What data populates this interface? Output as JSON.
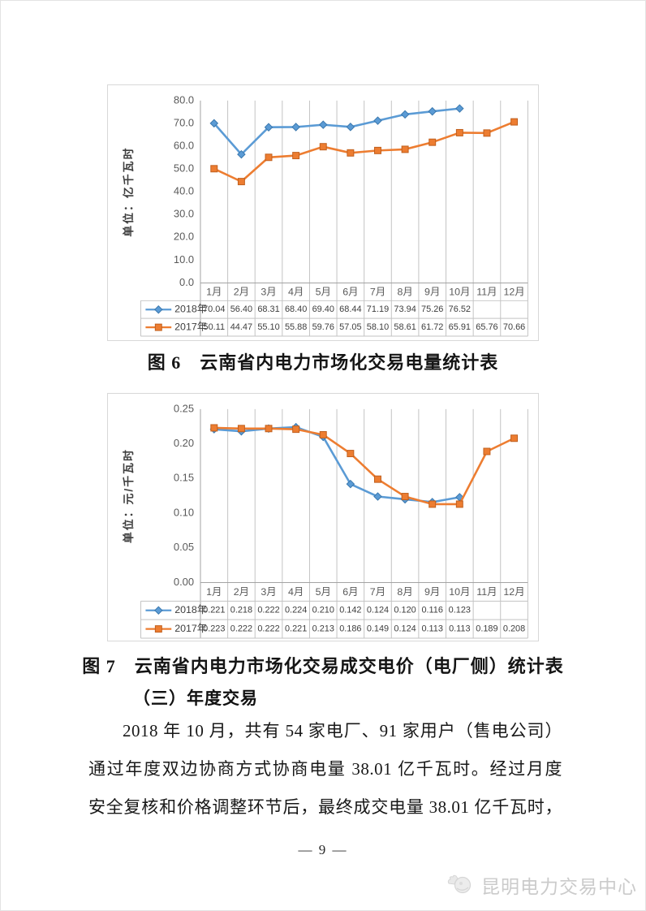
{
  "page": {
    "number_label": "— 9 —",
    "footer_brand": "昆明电力交易中心"
  },
  "figure6": {
    "caption": "图 6　云南省内电力市场化交易电量统计表"
  },
  "figure7": {
    "caption": "图 7　云南省内电力市场化交易成交电价（电厂侧）统计表"
  },
  "section": {
    "heading": "（三）年度交易",
    "lines": [
      "2018 年 10 月，共有 54 家电厂、91 家用户（售电公司）",
      "通过年度双边协商方式协商电量 38.01 亿千瓦时。经过月度",
      "安全复核和价格调整环节后，最终成交电量 38.01 亿千瓦时，"
    ]
  },
  "chart_data": [
    {
      "type": "line",
      "title": "云南省内电力市场化交易电量统计表",
      "xlabel": "",
      "ylabel": "单位：亿千瓦时",
      "categories": [
        "1月",
        "2月",
        "3月",
        "4月",
        "5月",
        "6月",
        "7月",
        "8月",
        "9月",
        "10月",
        "11月",
        "12月"
      ],
      "series": [
        {
          "name": "2018年",
          "color": "#5B9BD5",
          "marker_stroke": "#3A78AE",
          "marker": "diamond",
          "values": [
            70.04,
            56.4,
            68.31,
            68.4,
            69.4,
            68.44,
            71.19,
            73.94,
            75.26,
            76.52,
            null,
            null
          ]
        },
        {
          "name": "2017年",
          "color": "#ED7D31",
          "marker_stroke": "#C05F1D",
          "marker": "square",
          "values": [
            50.11,
            44.47,
            55.1,
            55.88,
            59.76,
            57.05,
            58.1,
            58.61,
            61.72,
            65.91,
            65.76,
            70.66
          ]
        }
      ],
      "ylim": [
        0,
        80
      ],
      "ytick_step": 10,
      "tick_decimals": 1,
      "value_decimals": 2,
      "grid": "vertical-only",
      "legend_position": "table-left"
    },
    {
      "type": "line",
      "title": "云南省内电力市场化交易成交电价（电厂侧）统计表",
      "xlabel": "",
      "ylabel": "单位：元/千瓦时",
      "categories": [
        "1月",
        "2月",
        "3月",
        "4月",
        "5月",
        "6月",
        "7月",
        "8月",
        "9月",
        "10月",
        "11月",
        "12月"
      ],
      "series": [
        {
          "name": "2018年",
          "color": "#5B9BD5",
          "marker_stroke": "#3A78AE",
          "marker": "diamond",
          "values": [
            0.221,
            0.218,
            0.222,
            0.224,
            0.21,
            0.142,
            0.124,
            0.12,
            0.116,
            0.123,
            null,
            null
          ]
        },
        {
          "name": "2017年",
          "color": "#ED7D31",
          "marker_stroke": "#C05F1D",
          "marker": "square",
          "values": [
            0.223,
            0.222,
            0.222,
            0.221,
            0.213,
            0.186,
            0.149,
            0.124,
            0.113,
            0.113,
            0.189,
            0.208
          ]
        }
      ],
      "ylim": [
        0,
        0.25
      ],
      "ytick_step": 0.05,
      "tick_decimals": 2,
      "value_decimals": 3,
      "grid": "vertical-only",
      "legend_position": "table-left"
    }
  ]
}
